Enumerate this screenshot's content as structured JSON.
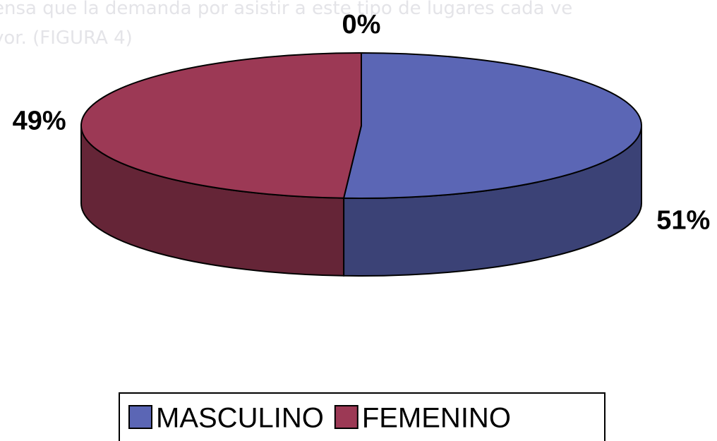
{
  "chart_data": {
    "type": "pie3d",
    "categories": [
      "MASCULINO",
      "FEMENINO",
      null
    ],
    "values": [
      51,
      49,
      0
    ],
    "value_labels": [
      "51%",
      "49%",
      "0%"
    ],
    "series_colors": [
      "#5b66b5",
      "#9c3955",
      "#d9d9d9"
    ],
    "legend": "bottom",
    "background_text": [
      "ensa que la demanda por asistir a este tipo de lugares cada ve",
      "yor. (FIGURA 4)"
    ]
  }
}
